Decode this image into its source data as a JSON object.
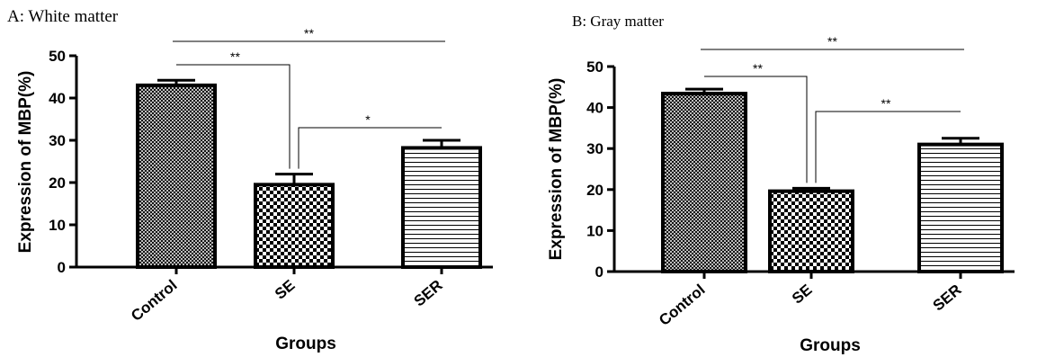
{
  "chart_data": [
    {
      "type": "bar",
      "title": "A: White matter",
      "xlabel": "Groups",
      "ylabel": "Expression of MBP(%)",
      "categories": [
        "Control",
        "SE",
        "SER"
      ],
      "values": [
        43,
        19.5,
        28.2
      ],
      "errors": [
        1.2,
        2.5,
        1.8
      ],
      "ylim": [
        0,
        50
      ],
      "yticks": [
        0,
        10,
        20,
        30,
        40,
        50
      ],
      "patterns": [
        "crosshatch",
        "checker",
        "horizontal"
      ],
      "significance": [
        {
          "from": "Control",
          "to": "SE",
          "label": "**"
        },
        {
          "from": "SE",
          "to": "SER",
          "label": "*"
        },
        {
          "from": "Control",
          "to": "SER",
          "label": "**"
        }
      ]
    },
    {
      "type": "bar",
      "title": "B: Gray matter",
      "xlabel": "Groups",
      "ylabel": "Expression of MBP(%)",
      "categories": [
        "Control",
        "SE",
        "SER"
      ],
      "values": [
        43.4,
        19.6,
        31
      ],
      "errors": [
        1.1,
        0.7,
        1.5
      ],
      "ylim": [
        0,
        50
      ],
      "yticks": [
        0,
        10,
        20,
        30,
        40,
        50
      ],
      "patterns": [
        "crosshatch",
        "checker",
        "horizontal"
      ],
      "significance": [
        {
          "from": "Control",
          "to": "SE",
          "label": "**"
        },
        {
          "from": "SE",
          "to": "SER",
          "label": "**"
        },
        {
          "from": "Control",
          "to": "SER",
          "label": "**"
        }
      ]
    }
  ]
}
